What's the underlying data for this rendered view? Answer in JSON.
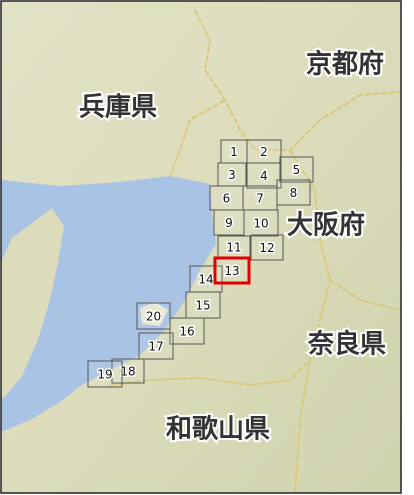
{
  "map": {
    "regions": [
      {
        "label": "京都府"
      },
      {
        "label": "兵庫県"
      },
      {
        "label": "大阪府"
      },
      {
        "label": "奈良県"
      },
      {
        "label": "和歌山県"
      }
    ],
    "tiles": [
      {
        "label": "1"
      },
      {
        "label": "2"
      },
      {
        "label": "3"
      },
      {
        "label": "4"
      },
      {
        "label": "5"
      },
      {
        "label": "6"
      },
      {
        "label": "7"
      },
      {
        "label": "8"
      },
      {
        "label": "9"
      },
      {
        "label": "10"
      },
      {
        "label": "11"
      },
      {
        "label": "12"
      },
      {
        "label": "13",
        "selected": true
      },
      {
        "label": "14"
      },
      {
        "label": "15"
      },
      {
        "label": "16"
      },
      {
        "label": "17"
      },
      {
        "label": "18"
      },
      {
        "label": "19"
      },
      {
        "label": "20"
      }
    ]
  }
}
